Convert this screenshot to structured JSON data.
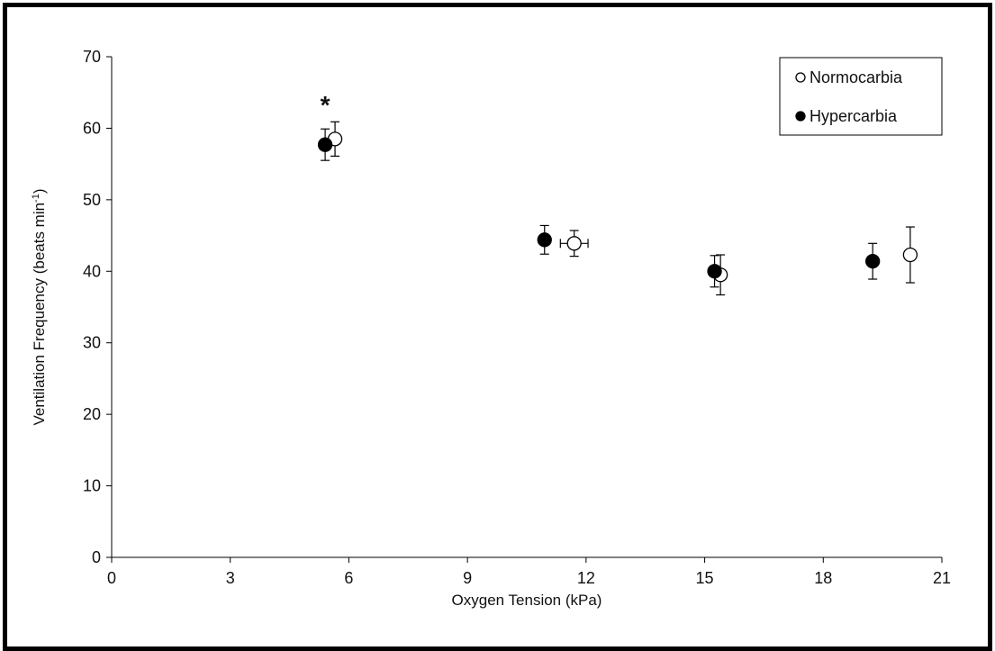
{
  "chart_data": {
    "type": "scatter",
    "title": "",
    "xlabel": "Oxygen Tension (kPa)",
    "ylabel_main": "Ventilation Frequency (beats min",
    "ylabel_sup": "-1",
    "ylabel_end": ")",
    "xlim": [
      0,
      21
    ],
    "ylim": [
      0,
      70
    ],
    "xticks": [
      0,
      3,
      6,
      9,
      12,
      15,
      18,
      21
    ],
    "yticks": [
      0,
      10,
      20,
      30,
      40,
      50,
      60,
      70
    ],
    "grid": false,
    "legend_position": "top-right",
    "series": [
      {
        "name": "Normocarbia",
        "marker": "open-circle",
        "color": "#000000",
        "points": [
          {
            "x": 5.65,
            "y": 58.5,
            "y_err": 2.4,
            "x_err": 0
          },
          {
            "x": 11.7,
            "y": 43.9,
            "y_err": 1.8,
            "x_err": 0.35
          },
          {
            "x": 15.4,
            "y": 39.5,
            "y_err": 2.8,
            "x_err": 0
          },
          {
            "x": 20.2,
            "y": 42.3,
            "y_err": 3.9,
            "x_err": 0
          }
        ]
      },
      {
        "name": "Hypercarbia",
        "marker": "filled-circle",
        "color": "#000000",
        "points": [
          {
            "x": 5.4,
            "y": 57.7,
            "y_err": 2.2,
            "x_err": 0
          },
          {
            "x": 10.95,
            "y": 44.4,
            "y_err": 2.0,
            "x_err": 0
          },
          {
            "x": 15.25,
            "y": 40.0,
            "y_err": 2.2,
            "x_err": 0
          },
          {
            "x": 19.25,
            "y": 41.4,
            "y_err": 2.5,
            "x_err": 0
          }
        ]
      }
    ],
    "annotations": [
      {
        "text": "*",
        "x": 5.4,
        "y": 63.8
      }
    ]
  }
}
